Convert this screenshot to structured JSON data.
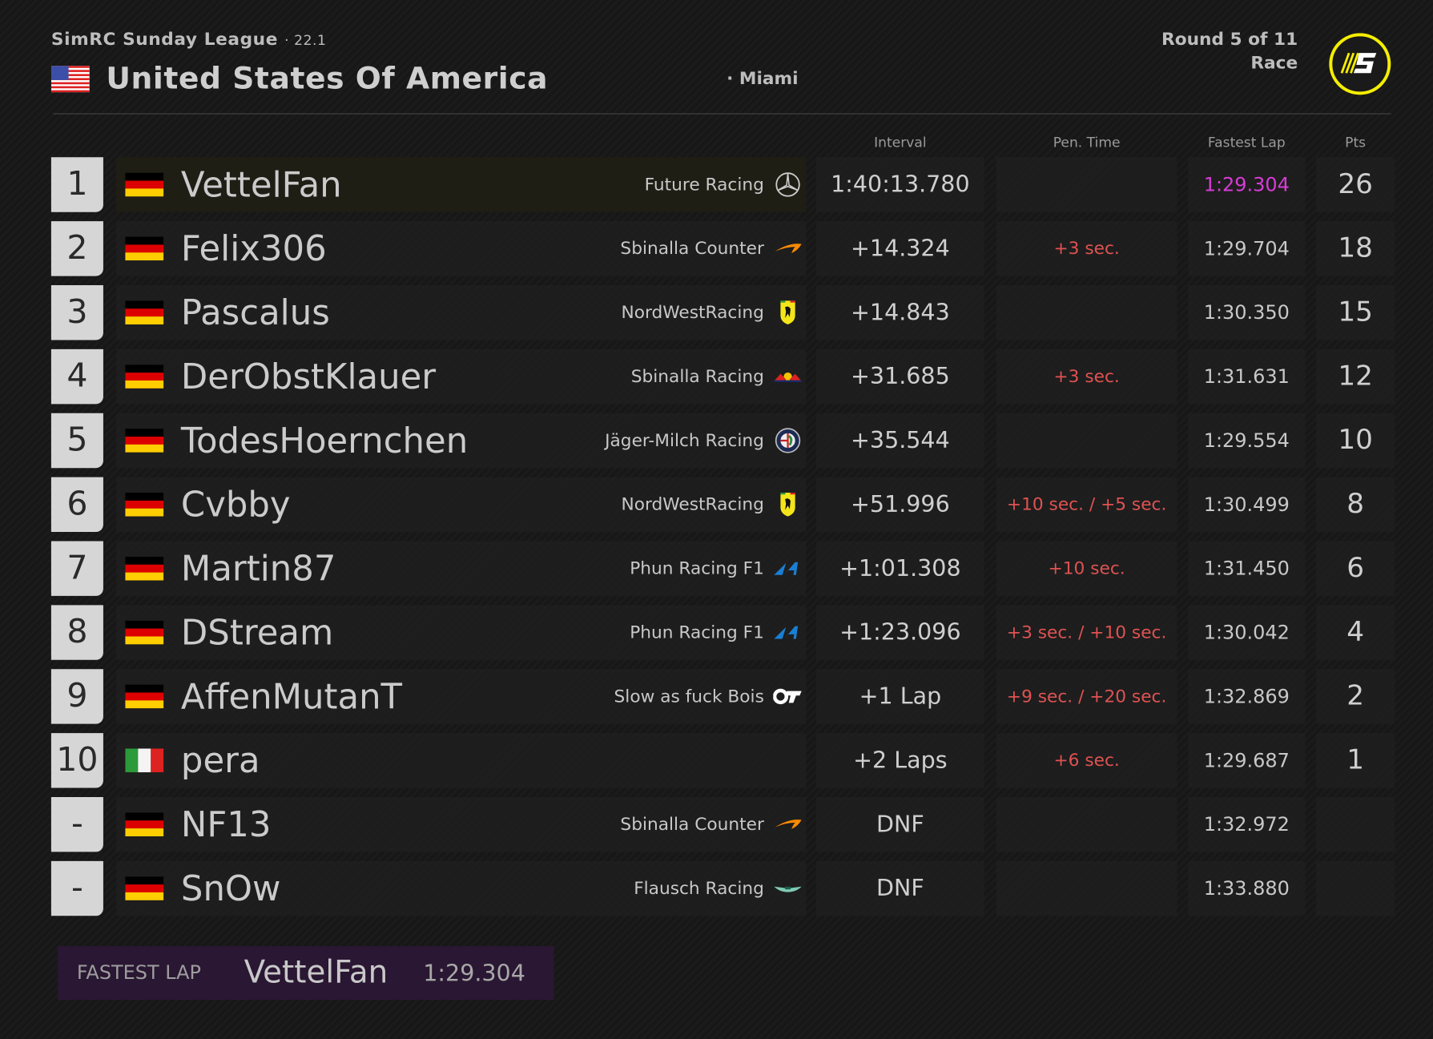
{
  "header": {
    "league": "SimRC Sunday League",
    "version": "· 22.1",
    "country": "United States Of America",
    "city": "· Miami",
    "round": "Round 5 of 11",
    "session": "Race",
    "accent": "#f5ee00"
  },
  "columns": {
    "interval": "Interval",
    "penalty": "Pen. Time",
    "fastest_lap": "Fastest Lap",
    "points": "Pts"
  },
  "results": [
    {
      "pos": "1",
      "flag": "de",
      "driver": "VettelFan",
      "team": "Future Racing",
      "icon": "mercedes-icon",
      "interval": "1:40:13.780",
      "penalty": "",
      "fastest_lap": "1:29.304",
      "best": true,
      "pts": "26"
    },
    {
      "pos": "2",
      "flag": "de",
      "driver": "Felix306",
      "team": "Sbinalla Counter",
      "icon": "mclaren-icon",
      "interval": "+14.324",
      "penalty": "+3 sec.",
      "fastest_lap": "1:29.704",
      "pts": "18"
    },
    {
      "pos": "3",
      "flag": "de",
      "driver": "Pascalus",
      "team": "NordWestRacing",
      "icon": "ferrari-icon",
      "interval": "+14.843",
      "penalty": "",
      "fastest_lap": "1:30.350",
      "pts": "15"
    },
    {
      "pos": "4",
      "flag": "de",
      "driver": "DerObstKlauer",
      "team": "Sbinalla Racing",
      "icon": "redbull-icon",
      "interval": "+31.685",
      "penalty": "+3 sec.",
      "fastest_lap": "1:31.631",
      "pts": "12"
    },
    {
      "pos": "5",
      "flag": "de",
      "driver": "TodesHoernchen",
      "team": "Jäger-Milch Racing",
      "icon": "alfa-romeo-icon",
      "interval": "+35.544",
      "penalty": "",
      "fastest_lap": "1:29.554",
      "pts": "10"
    },
    {
      "pos": "6",
      "flag": "de",
      "driver": "Cvbby",
      "team": "NordWestRacing",
      "icon": "ferrari-icon",
      "interval": "+51.996",
      "penalty": "+10 sec. / +5 sec.",
      "fastest_lap": "1:30.499",
      "pts": "8"
    },
    {
      "pos": "7",
      "flag": "de",
      "driver": "Martin87",
      "team": "Phun Racing F1",
      "icon": "alpine-icon",
      "interval": "+1:01.308",
      "penalty": "+10 sec.",
      "fastest_lap": "1:31.450",
      "pts": "6"
    },
    {
      "pos": "8",
      "flag": "de",
      "driver": "DStream",
      "team": "Phun Racing F1",
      "icon": "alpine-icon",
      "interval": "+1:23.096",
      "penalty": "+3 sec. / +10 sec.",
      "fastest_lap": "1:30.042",
      "pts": "4"
    },
    {
      "pos": "9",
      "flag": "de",
      "driver": "AffenMutanT",
      "team": "Slow as fuck Bois",
      "icon": "alphatauri-icon",
      "interval": "+1 Lap",
      "penalty": "+9 sec. / +20 sec.",
      "fastest_lap": "1:32.869",
      "pts": "2"
    },
    {
      "pos": "10",
      "flag": "it",
      "driver": "pera",
      "team": "",
      "icon": "",
      "interval": "+2 Laps",
      "penalty": "+6 sec.",
      "fastest_lap": "1:29.687",
      "pts": "1"
    },
    {
      "pos": "-",
      "flag": "de",
      "driver": "NF13",
      "team": "Sbinalla Counter",
      "icon": "mclaren-icon",
      "interval": "DNF",
      "penalty": "",
      "fastest_lap": "1:32.972",
      "pts": ""
    },
    {
      "pos": "-",
      "flag": "de",
      "driver": "SnOw",
      "team": "Flausch Racing",
      "icon": "aston-martin-icon",
      "interval": "DNF",
      "penalty": "",
      "fastest_lap": "1:33.880",
      "pts": ""
    }
  ],
  "fastest_lap": {
    "label": "FASTEST LAP",
    "driver": "VettelFan",
    "time": "1:29.304"
  },
  "colors": {
    "fastest": "#d63cd6",
    "penalty": "#e05252",
    "fastest_bg": "#2a1733"
  }
}
